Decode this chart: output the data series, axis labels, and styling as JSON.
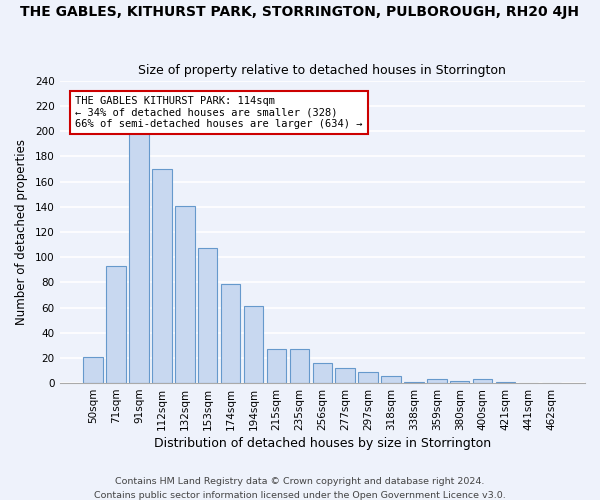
{
  "title": "THE GABLES, KITHURST PARK, STORRINGTON, PULBOROUGH, RH20 4JH",
  "subtitle": "Size of property relative to detached houses in Storrington",
  "xlabel": "Distribution of detached houses by size in Storrington",
  "ylabel": "Number of detached properties",
  "bar_color": "#c8d8f0",
  "bar_edge_color": "#6699cc",
  "categories": [
    "50sqm",
    "71sqm",
    "91sqm",
    "112sqm",
    "132sqm",
    "153sqm",
    "174sqm",
    "194sqm",
    "215sqm",
    "235sqm",
    "256sqm",
    "277sqm",
    "297sqm",
    "318sqm",
    "338sqm",
    "359sqm",
    "380sqm",
    "400sqm",
    "421sqm",
    "441sqm",
    "462sqm"
  ],
  "values": [
    21,
    93,
    199,
    170,
    141,
    107,
    79,
    61,
    27,
    27,
    16,
    12,
    9,
    6,
    1,
    3,
    2,
    3,
    1,
    0,
    0
  ],
  "ylim": [
    0,
    240
  ],
  "yticks": [
    0,
    20,
    40,
    60,
    80,
    100,
    120,
    140,
    160,
    180,
    200,
    220,
    240
  ],
  "annotation_title": "THE GABLES KITHURST PARK: 114sqm",
  "annotation_line1": "← 34% of detached houses are smaller (328)",
  "annotation_line2": "66% of semi-detached houses are larger (634) →",
  "annotation_box_color": "#ffffff",
  "annotation_box_edge": "#cc0000",
  "footer1": "Contains HM Land Registry data © Crown copyright and database right 2024.",
  "footer2": "Contains public sector information licensed under the Open Government Licence v3.0.",
  "background_color": "#eef2fb",
  "grid_color": "#ffffff",
  "title_fontsize": 10,
  "subtitle_fontsize": 9,
  "xlabel_fontsize": 9,
  "ylabel_fontsize": 8.5,
  "tick_fontsize": 7.5,
  "footer_fontsize": 6.8
}
